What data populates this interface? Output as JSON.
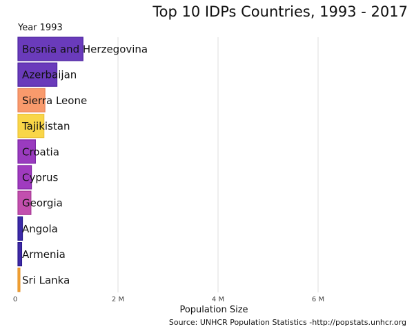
{
  "chart_data": {
    "type": "bar",
    "orientation": "horizontal",
    "title": "Top 10 IDPs Countries, 1993 - 2017",
    "subtitle": "Year 1993",
    "xlabel": "Population Size",
    "ylabel": "",
    "caption": "Source: UNHCR Population Statistics -http://popstats.unhcr.org",
    "xlim": [
      0,
      7500000
    ],
    "ticks": [
      {
        "value": 0,
        "label": "0"
      },
      {
        "value": 2000000,
        "label": "2 M"
      },
      {
        "value": 4000000,
        "label": "4 M"
      },
      {
        "value": 6000000,
        "label": "6 M"
      }
    ],
    "grid": true,
    "categories": [
      "Bosnia and Herzegovina",
      "Azerbaijan",
      "Sierra Leone",
      "Tajikistan",
      "Croatia",
      "Cyprus",
      "Georgia",
      "Angola",
      "Armenia",
      "Sri Lanka"
    ],
    "values": [
      1300000,
      780000,
      540000,
      520000,
      350000,
      270000,
      260000,
      90000,
      75000,
      40000
    ],
    "colors": [
      "#6a3bbb",
      "#6a3bbb",
      "#f99a6c",
      "#f9d648",
      "#9a3bbf",
      "#a03bbf",
      "#c24fae",
      "#3d2aa8",
      "#3f2aa6",
      "#f7a83a"
    ],
    "stroke_colors": [
      "#4b22a0",
      "#4b22a0",
      "#e8845a",
      "#ecc23a",
      "#7a24a3",
      "#8024a3",
      "#a63693",
      "#23158a",
      "#261688",
      "#e49127"
    ]
  }
}
